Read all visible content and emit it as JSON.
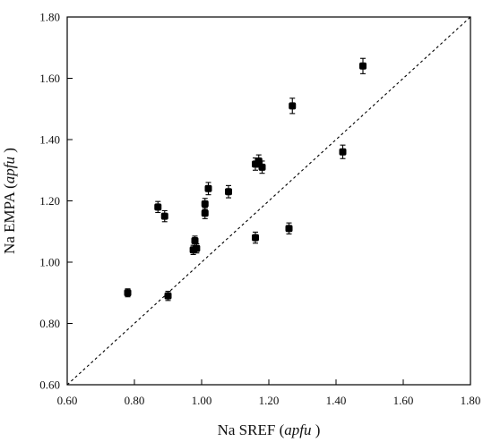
{
  "chart_data": {
    "type": "scatter",
    "xlabel": {
      "prefix": "Na SREF (",
      "italic": "apfu",
      "suffix": " )"
    },
    "ylabel": {
      "prefix": "Na EMPA (",
      "italic": "apfu",
      "suffix": " )"
    },
    "xlim": [
      0.6,
      1.8
    ],
    "ylim": [
      0.6,
      1.8
    ],
    "x_ticks": [
      "0.60",
      "0.80",
      "1.00",
      "1.20",
      "1.40",
      "1.60",
      "1.80"
    ],
    "y_ticks": [
      "0.60",
      "0.80",
      "1.00",
      "1.20",
      "1.40",
      "1.60",
      "1.80"
    ],
    "reference_line": {
      "style": "dashed",
      "from": [
        0.6,
        0.6
      ],
      "to": [
        1.8,
        1.8
      ]
    },
    "grid": false,
    "legend": "none",
    "marker_color": "#000000",
    "points": [
      {
        "x": 0.78,
        "y": 0.9,
        "err": 0.013
      },
      {
        "x": 0.87,
        "y": 1.18,
        "err": 0.018
      },
      {
        "x": 0.89,
        "y": 1.15,
        "err": 0.018
      },
      {
        "x": 0.9,
        "y": 0.89,
        "err": 0.015
      },
      {
        "x": 0.975,
        "y": 1.04,
        "err": 0.015
      },
      {
        "x": 0.985,
        "y": 1.045,
        "err": 0.015
      },
      {
        "x": 0.98,
        "y": 1.07,
        "err": 0.015
      },
      {
        "x": 1.01,
        "y": 1.16,
        "err": 0.018
      },
      {
        "x": 1.01,
        "y": 1.19,
        "err": 0.018
      },
      {
        "x": 1.02,
        "y": 1.24,
        "err": 0.02
      },
      {
        "x": 1.08,
        "y": 1.23,
        "err": 0.02
      },
      {
        "x": 1.16,
        "y": 1.08,
        "err": 0.018
      },
      {
        "x": 1.16,
        "y": 1.32,
        "err": 0.02
      },
      {
        "x": 1.17,
        "y": 1.33,
        "err": 0.02
      },
      {
        "x": 1.18,
        "y": 1.31,
        "err": 0.02
      },
      {
        "x": 1.26,
        "y": 1.11,
        "err": 0.018
      },
      {
        "x": 1.27,
        "y": 1.51,
        "err": 0.025
      },
      {
        "x": 1.42,
        "y": 1.36,
        "err": 0.022
      },
      {
        "x": 1.48,
        "y": 1.64,
        "err": 0.025
      }
    ]
  }
}
